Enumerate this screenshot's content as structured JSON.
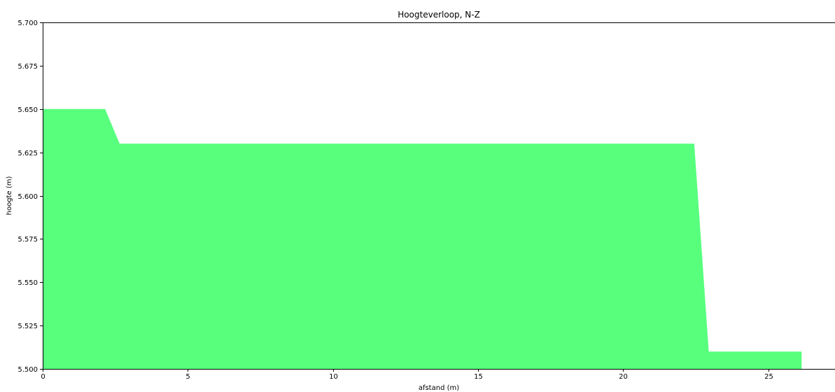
{
  "chart_data": {
    "type": "area",
    "title": "Hoogteverloop, N-Z",
    "xlabel": "afstand (m)",
    "ylabel": "hoogte (m)",
    "xlim": [
      0,
      27.3
    ],
    "ylim": [
      5.5,
      5.7
    ],
    "xticks": [
      0,
      5,
      10,
      15,
      20,
      25
    ],
    "xtick_labels": [
      "0",
      "5",
      "10",
      "15",
      "20",
      "25"
    ],
    "yticks": [
      5.5,
      5.525,
      5.55,
      5.575,
      5.6,
      5.625,
      5.65,
      5.675,
      5.7
    ],
    "ytick_labels": [
      "5.500",
      "5.525",
      "5.550",
      "5.575",
      "5.600",
      "5.625",
      "5.650",
      "5.675",
      "5.700"
    ],
    "grid": false,
    "series": [
      {
        "color": "#57ff7d",
        "baseline": 5.5,
        "x": [
          0,
          2.15,
          2.65,
          22.45,
          22.95,
          26.15
        ],
        "y": [
          5.65,
          5.65,
          5.63,
          5.63,
          5.51,
          5.51
        ]
      }
    ]
  }
}
